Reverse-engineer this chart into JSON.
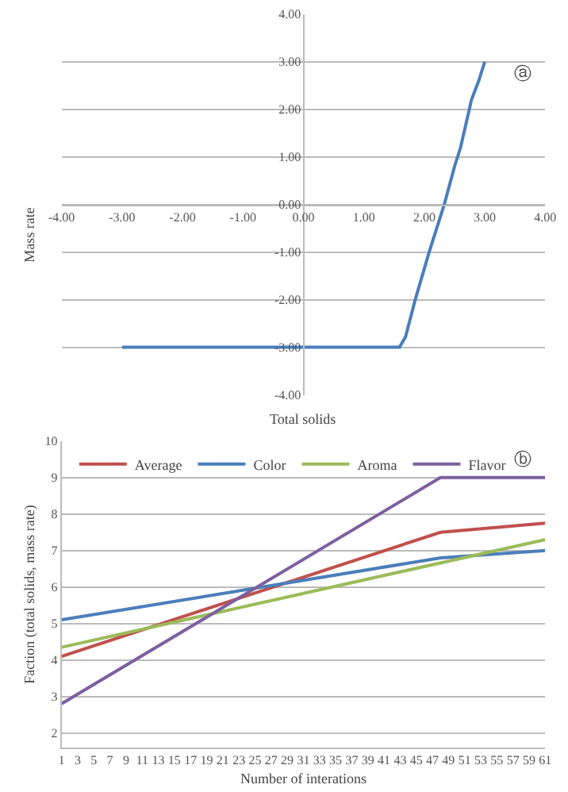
{
  "chart_data": [
    {
      "type": "line",
      "xlabel": "Total solids",
      "ylabel": "Mass rate",
      "xlim": [
        -4,
        4
      ],
      "ylim": [
        -4,
        4
      ],
      "xticks": [
        {
          "value": -4,
          "label": "-4.00"
        },
        {
          "value": -3,
          "label": "-3.00"
        },
        {
          "value": -2,
          "label": "-2.00"
        },
        {
          "value": -1,
          "label": "-1.00"
        },
        {
          "value": 0,
          "label": "0.00"
        },
        {
          "value": 1,
          "label": "1.00"
        },
        {
          "value": 2,
          "label": "2.00"
        },
        {
          "value": 3,
          "label": "3.00"
        },
        {
          "value": 4,
          "label": "4.00"
        }
      ],
      "yticks": [
        {
          "value": -4,
          "label": "-4.00"
        },
        {
          "value": -3,
          "label": "-3.00"
        },
        {
          "value": -2,
          "label": "-2.00"
        },
        {
          "value": -1,
          "label": "-1.00"
        },
        {
          "value": 0,
          "label": "0.00"
        },
        {
          "value": 1,
          "label": "1.00"
        },
        {
          "value": 2,
          "label": "2.00"
        },
        {
          "value": 3,
          "label": "3.00"
        },
        {
          "value": 4,
          "label": "4.00"
        }
      ],
      "grid": "y",
      "legend": false,
      "marker": "none",
      "line_style": "solid",
      "annotations": [
        "ⓐ"
      ],
      "series": [
        {
          "color": "#4a7ebb",
          "x": [
            -3,
            1.59,
            1.69,
            1.85,
            2.08,
            2.33,
            2.5,
            2.6,
            2.78,
            2.9,
            3.0
          ],
          "values": [
            -3,
            -3,
            -2.78,
            -2,
            -1,
            0,
            0.8,
            1.2,
            2.2,
            2.6,
            3
          ]
        }
      ]
    },
    {
      "type": "line",
      "xlabel": "Number of interations",
      "ylabel": "Faction (total solids, mass rate)",
      "xlim": [
        1,
        61
      ],
      "ylim": [
        1.6,
        10
      ],
      "xticks": [
        1,
        3,
        5,
        7,
        9,
        11,
        13,
        15,
        17,
        19,
        21,
        23,
        25,
        27,
        29,
        31,
        33,
        35,
        37,
        39,
        41,
        43,
        45,
        47,
        49,
        51,
        53,
        55,
        57,
        59,
        61
      ],
      "yticks": [
        2,
        3,
        4,
        5,
        6,
        7,
        8,
        9,
        10
      ],
      "grid": "y",
      "legend": "top left",
      "marker": "none",
      "line_style": "solid",
      "annotations": [
        "ⓑ"
      ],
      "series": [
        {
          "name": "Average",
          "color": "#c0504d",
          "x": [
            1,
            48,
            61
          ],
          "values": [
            4.1,
            7.5,
            7.75
          ]
        },
        {
          "name": "Color",
          "color": "#4a7ebb",
          "x": [
            1,
            48,
            61
          ],
          "values": [
            5.1,
            6.8,
            7.0
          ]
        },
        {
          "name": "Aroma",
          "color": "#9bbb59",
          "x": [
            1,
            61
          ],
          "values": [
            4.35,
            7.3
          ]
        },
        {
          "name": "Flavor",
          "color": "#7d60a0",
          "x": [
            1,
            48,
            61
          ],
          "values": [
            2.8,
            9,
            9
          ]
        }
      ]
    }
  ]
}
